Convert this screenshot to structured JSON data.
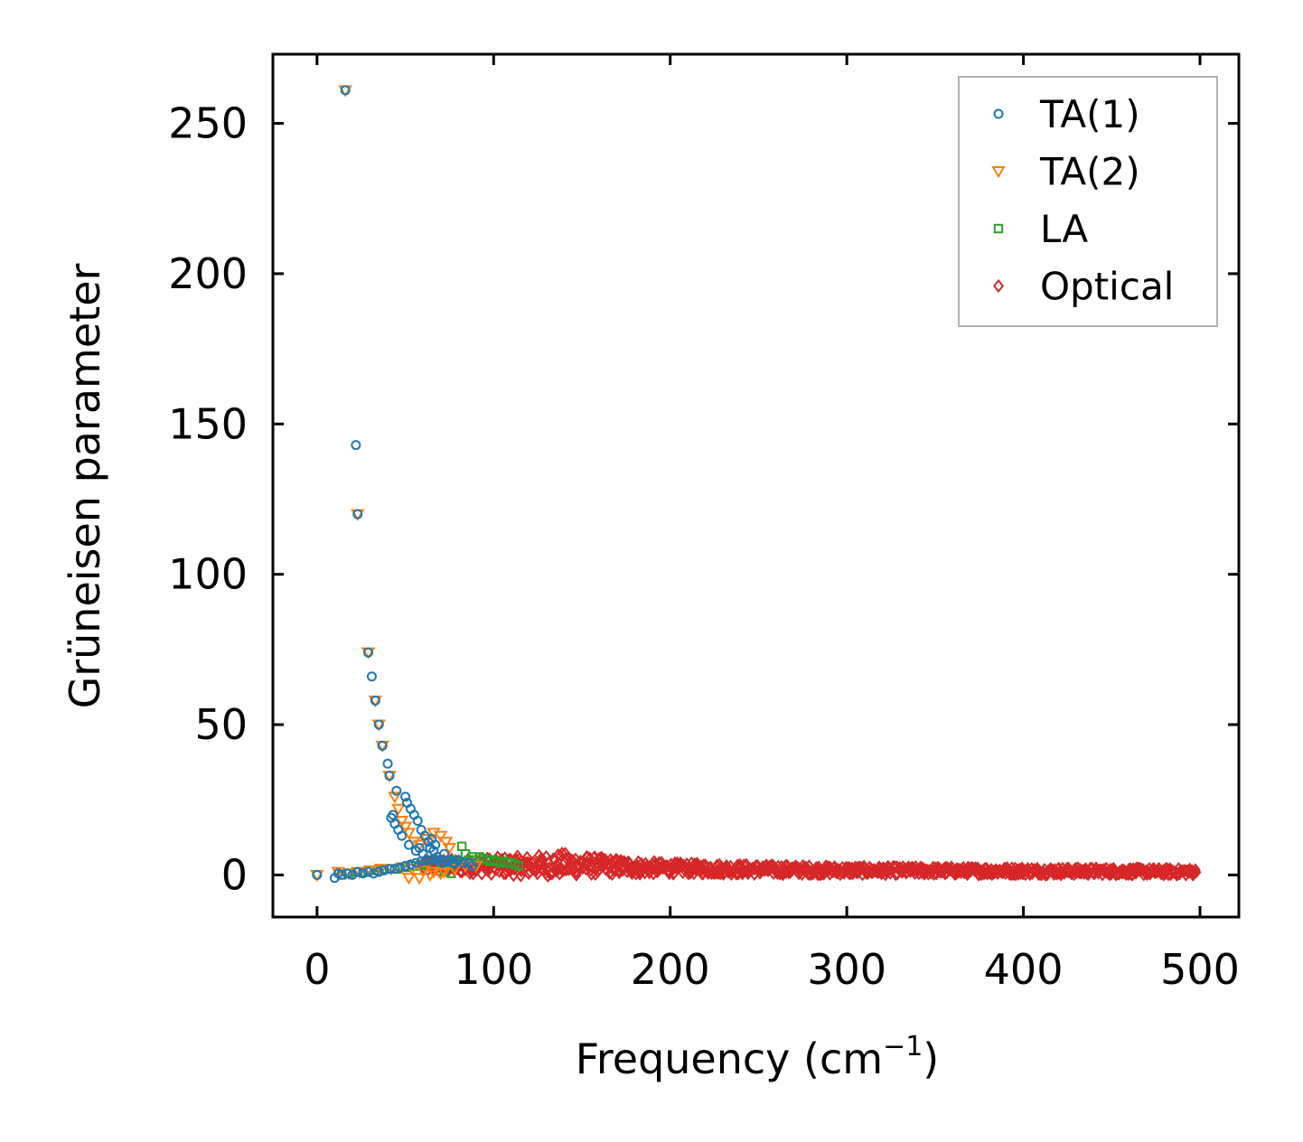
{
  "chart_data": {
    "type": "scatter",
    "title": "",
    "xlabel": "Frequency (cm",
    "xlabel_sup": "−1",
    "xlabel_end": ")",
    "ylabel": "Grüneisen parameter",
    "xlim": [
      -25,
      522
    ],
    "ylim": [
      -14,
      273
    ],
    "xticks": [
      0,
      100,
      200,
      300,
      400,
      500
    ],
    "yticks": [
      0,
      50,
      100,
      150,
      200,
      250
    ],
    "legend_position": "top-right",
    "series": [
      {
        "name": "TA(1)",
        "marker": "circle",
        "color": "#1f77b4",
        "points": [
          [
            0,
            0
          ],
          [
            10,
            -1
          ],
          [
            12,
            0.5
          ],
          [
            16,
            261
          ],
          [
            22,
            143
          ],
          [
            23,
            120
          ],
          [
            29,
            74
          ],
          [
            31,
            66
          ],
          [
            33,
            58
          ],
          [
            35,
            50
          ],
          [
            37,
            43
          ],
          [
            40,
            37
          ],
          [
            41,
            33
          ],
          [
            45,
            28
          ],
          [
            42,
            19
          ],
          [
            43,
            20
          ],
          [
            44,
            17
          ],
          [
            46,
            15
          ],
          [
            48,
            13
          ],
          [
            50,
            26
          ],
          [
            51,
            24
          ],
          [
            53,
            22
          ],
          [
            55,
            20
          ],
          [
            57,
            18
          ],
          [
            59,
            15
          ],
          [
            61,
            13
          ],
          [
            52,
            10
          ],
          [
            56,
            8
          ],
          [
            60,
            7
          ],
          [
            64,
            9
          ],
          [
            66,
            8
          ],
          [
            68,
            6
          ],
          [
            70,
            5
          ],
          [
            72,
            7
          ],
          [
            75,
            5
          ],
          [
            78,
            4
          ],
          [
            80,
            5
          ],
          [
            83,
            4
          ],
          [
            86,
            4
          ],
          [
            88,
            3
          ],
          [
            14,
            0
          ],
          [
            17,
            0.5
          ],
          [
            20,
            0
          ],
          [
            23,
            1
          ],
          [
            26,
            0.5
          ],
          [
            29,
            1
          ],
          [
            32,
            0.5
          ],
          [
            35,
            1
          ],
          [
            38,
            1.5
          ],
          [
            41,
            2
          ],
          [
            44,
            2
          ],
          [
            47,
            2.5
          ],
          [
            50,
            3
          ],
          [
            53,
            3.5
          ],
          [
            56,
            4
          ],
          [
            59,
            4.5
          ],
          [
            62,
            5
          ],
          [
            65,
            5
          ],
          [
            68,
            5
          ],
          [
            71,
            4
          ],
          [
            74,
            4.5
          ],
          [
            77,
            4
          ],
          [
            65,
            12
          ],
          [
            67,
            10
          ],
          [
            63,
            11
          ],
          [
            58,
            9
          ]
        ]
      },
      {
        "name": "TA(2)",
        "marker": "triangle-down",
        "color": "#ff7f0e",
        "points": [
          [
            0,
            0
          ],
          [
            16,
            261
          ],
          [
            23,
            120
          ],
          [
            29,
            74
          ],
          [
            33,
            58
          ],
          [
            35,
            50
          ],
          [
            37,
            43
          ],
          [
            41,
            33
          ],
          [
            44,
            26
          ],
          [
            46,
            22
          ],
          [
            48,
            18
          ],
          [
            50,
            16
          ],
          [
            52,
            14
          ],
          [
            55,
            11
          ],
          [
            58,
            10
          ],
          [
            62,
            12
          ],
          [
            66,
            14
          ],
          [
            70,
            13
          ],
          [
            73,
            11
          ],
          [
            75,
            9
          ],
          [
            12,
            1
          ],
          [
            18,
            0.5
          ],
          [
            24,
            1
          ],
          [
            30,
            1.5
          ],
          [
            36,
            2
          ],
          [
            42,
            2
          ],
          [
            48,
            2.5
          ],
          [
            54,
            2
          ],
          [
            60,
            1.5
          ],
          [
            66,
            1
          ],
          [
            72,
            1
          ],
          [
            78,
            2
          ],
          [
            84,
            3
          ],
          [
            90,
            3
          ],
          [
            52,
            -1
          ],
          [
            58,
            -1
          ],
          [
            64,
            0
          ],
          [
            70,
            0.5
          ]
        ]
      },
      {
        "name": "LA",
        "marker": "square",
        "color": "#2ca02c",
        "points": [
          [
            14,
            0
          ],
          [
            18,
            0.5
          ],
          [
            22,
            1
          ],
          [
            26,
            1
          ],
          [
            30,
            1.5
          ],
          [
            34,
            1.5
          ],
          [
            38,
            2
          ],
          [
            42,
            2
          ],
          [
            46,
            2
          ],
          [
            50,
            2.5
          ],
          [
            54,
            3
          ],
          [
            58,
            3
          ],
          [
            62,
            3.5
          ],
          [
            66,
            3.5
          ],
          [
            70,
            4
          ],
          [
            72,
            1
          ],
          [
            74,
            4
          ],
          [
            76,
            0.5
          ],
          [
            78,
            5
          ],
          [
            80,
            4
          ],
          [
            82,
            9.5
          ],
          [
            84,
            7
          ],
          [
            86,
            5
          ],
          [
            88,
            6
          ],
          [
            90,
            5
          ],
          [
            92,
            6
          ],
          [
            94,
            5.5
          ],
          [
            96,
            5
          ],
          [
            98,
            4.5
          ],
          [
            100,
            5
          ],
          [
            102,
            4.5
          ],
          [
            104,
            4
          ],
          [
            106,
            4.5
          ],
          [
            108,
            4
          ],
          [
            110,
            4
          ],
          [
            112,
            3.5
          ],
          [
            114,
            3
          ]
        ]
      },
      {
        "name": "Optical",
        "marker": "diamond",
        "color": "#d62728",
        "x_range": [
          60,
          498
        ],
        "band": [
          [
            60,
            3
          ],
          [
            80,
            3
          ],
          [
            100,
            3
          ],
          [
            120,
            3
          ],
          [
            140,
            3.5
          ],
          [
            160,
            3
          ],
          [
            180,
            2.5
          ],
          [
            200,
            2.2
          ],
          [
            250,
            1.8
          ],
          [
            300,
            1.5
          ],
          [
            350,
            1.4
          ],
          [
            400,
            1.3
          ],
          [
            450,
            1.2
          ],
          [
            498,
            1.0
          ]
        ],
        "band_halfwidth": [
          [
            60,
            2
          ],
          [
            100,
            3
          ],
          [
            120,
            3.5
          ],
          [
            140,
            4
          ],
          [
            160,
            3
          ],
          [
            180,
            2.5
          ],
          [
            200,
            2
          ],
          [
            300,
            1.5
          ],
          [
            400,
            1.3
          ],
          [
            498,
            1.2
          ]
        ]
      }
    ]
  }
}
